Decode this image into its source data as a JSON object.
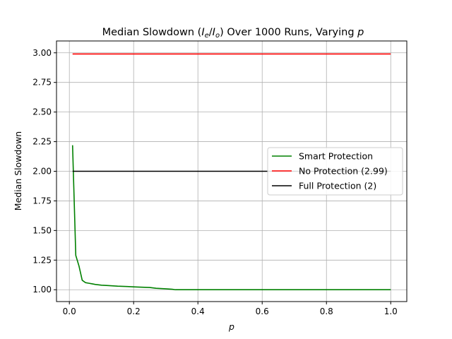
{
  "chart_data": {
    "type": "line",
    "title": "Median Slowdown (I_e/I_o) Over 1000 Runs, Varying p",
    "title_parts": {
      "prefix": "Median Slowdown (",
      "i1": "I",
      "s1": "e",
      "slash": "/",
      "i2": "I",
      "s2": "o",
      "middle": ") Over 1000 Runs, Varying ",
      "p": "p"
    },
    "xlabel": "p",
    "ylabel": "Median Slowdown",
    "xlim": [
      -0.04,
      1.05
    ],
    "ylim": [
      0.9,
      3.1
    ],
    "xticks": [
      0.0,
      0.2,
      0.4,
      0.6,
      0.8,
      1.0
    ],
    "xtick_labels": [
      "0.0",
      "0.2",
      "0.4",
      "0.6",
      "0.8",
      "1.0"
    ],
    "yticks": [
      1.0,
      1.25,
      1.5,
      1.75,
      2.0,
      2.25,
      2.5,
      2.75,
      3.0
    ],
    "ytick_labels": [
      "1.00",
      "1.25",
      "1.50",
      "1.75",
      "2.00",
      "2.25",
      "2.50",
      "2.75",
      "3.00"
    ],
    "grid": true,
    "legend_position": "center-right",
    "series": [
      {
        "name": "Smart Protection",
        "color": "#008000",
        "x": [
          0.01,
          0.02,
          0.03,
          0.04,
          0.05,
          0.06,
          0.07,
          0.08,
          0.1,
          0.12,
          0.15,
          0.18,
          0.2,
          0.22,
          0.25,
          0.27,
          0.3,
          0.32,
          0.33,
          0.35,
          0.4,
          0.5,
          0.6,
          0.7,
          0.8,
          0.9,
          1.0
        ],
        "y": [
          2.22,
          1.29,
          1.2,
          1.08,
          1.06,
          1.055,
          1.05,
          1.045,
          1.038,
          1.035,
          1.03,
          1.027,
          1.024,
          1.022,
          1.019,
          1.012,
          1.008,
          1.004,
          1.0,
          1.0,
          1.0,
          1.0,
          1.0,
          1.0,
          1.0,
          1.0,
          1.0
        ]
      },
      {
        "name": "No Protection (2.99)",
        "color": "#ff0000",
        "x": [
          0.01,
          1.0
        ],
        "y": [
          2.99,
          2.99
        ]
      },
      {
        "name": "Full Protection (2)",
        "color": "#000000",
        "x": [
          0.01,
          1.0
        ],
        "y": [
          2.0,
          2.0
        ]
      }
    ]
  }
}
